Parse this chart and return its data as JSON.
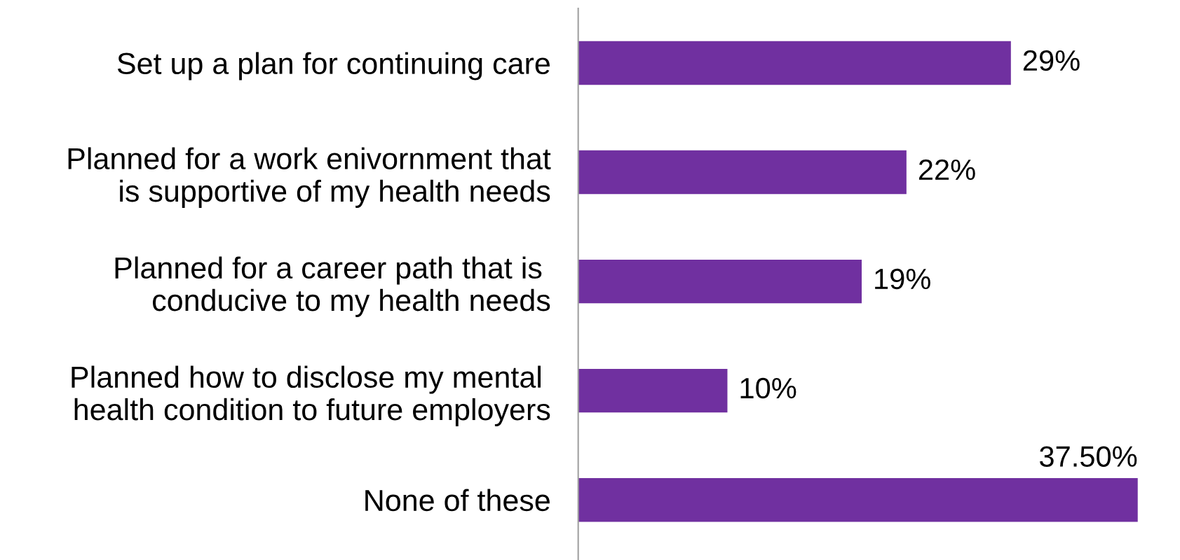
{
  "chart_data": {
    "type": "bar",
    "orientation": "horizontal",
    "categories": [
      "Set up a plan for continuing care",
      "Planned for a work enivornment that\nis supportive of my health needs",
      "Planned for a career path that is \nconducive to my health needs",
      "Planned how to disclose my mental \nhealth condition to future employers",
      "None of these"
    ],
    "values": [
      29,
      22,
      19,
      10,
      37.5
    ],
    "value_labels": [
      "29%",
      "22%",
      "19%",
      "10%",
      "37.50%"
    ],
    "color": "#7030a0"
  }
}
